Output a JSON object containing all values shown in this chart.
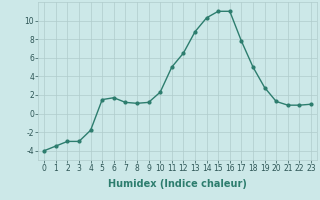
{
  "x": [
    0,
    1,
    2,
    3,
    4,
    5,
    6,
    7,
    8,
    9,
    10,
    11,
    12,
    13,
    14,
    15,
    16,
    17,
    18,
    19,
    20,
    21,
    22,
    23
  ],
  "y": [
    -4.0,
    -3.5,
    -3.0,
    -3.0,
    -1.8,
    1.5,
    1.7,
    1.2,
    1.1,
    1.2,
    2.3,
    5.0,
    6.5,
    8.8,
    10.3,
    11.0,
    11.0,
    7.8,
    5.0,
    2.8,
    1.3,
    0.9,
    0.9,
    1.0
  ],
  "line_color": "#2d7d6e",
  "marker": "o",
  "markersize": 2.0,
  "linewidth": 1.0,
  "background_color": "#cce8e8",
  "grid_color": "#b0cccc",
  "xlabel": "Humidex (Indice chaleur)",
  "xlabel_fontsize": 7,
  "xlabel_bold": true,
  "ylim": [
    -5,
    12
  ],
  "xlim": [
    -0.5,
    23.5
  ],
  "yticks": [
    -4,
    -2,
    0,
    2,
    4,
    6,
    8,
    10
  ],
  "xticks": [
    0,
    1,
    2,
    3,
    4,
    5,
    6,
    7,
    8,
    9,
    10,
    11,
    12,
    13,
    14,
    15,
    16,
    17,
    18,
    19,
    20,
    21,
    22,
    23
  ],
  "tick_fontsize": 5.5
}
